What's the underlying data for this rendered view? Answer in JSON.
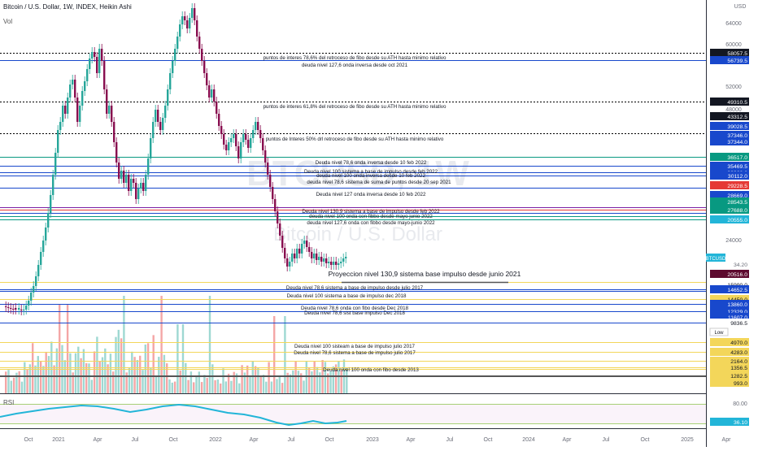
{
  "header": {
    "symbol_line": "Bitcoin / U.S. Dollar, 1W, INDEX, Heikin Ashi",
    "vol_label": "Vol",
    "rsi_label": "RSI",
    "currency": "USD",
    "low_label": "Low"
  },
  "watermark": {
    "symbol": "BTCUSD, 1W",
    "name": "Bitcoin / U.S. Dollar"
  },
  "colors": {
    "up": "#26a69a",
    "down": "#880e4f",
    "vol_up": "#9ed8d2",
    "vol_down": "#f4a6a6",
    "rsi": "#22b5d8",
    "level_blue": "#1848cc",
    "level_green": "#089981",
    "level_purple": "#7b1fa2",
    "level_yellow": "#f3d65a",
    "level_red": "#e53935",
    "price_tag": "#2962ff"
  },
  "price_axis_ticks": [
    "64000",
    "60000",
    "52000",
    "48000",
    "24000"
  ],
  "price_axis_labels": [
    {
      "text": "58057.5",
      "style": "black"
    },
    {
      "text": "56739.5",
      "style": "blue"
    },
    {
      "text": "49310.5",
      "style": "black"
    },
    {
      "text": "43312.5",
      "style": "black"
    },
    {
      "text": "39028.5",
      "style": "blue"
    },
    {
      "text": "37346.0",
      "style": "blue"
    },
    {
      "text": "37344.0",
      "style": "blue"
    },
    {
      "text": "36517.0",
      "style": "green"
    },
    {
      "text": "35469.5",
      "style": "blue"
    },
    {
      "text": "33368.0",
      "style": "blue"
    },
    {
      "text": "30112.0",
      "style": "blue"
    },
    {
      "text": "29228.5",
      "style": "red"
    },
    {
      "text": "28669.0",
      "style": "blue"
    },
    {
      "text": "28543.5",
      "style": "green"
    },
    {
      "text": "27688.0",
      "style": "green"
    },
    {
      "text": "20555.0",
      "style": "cyan"
    },
    {
      "text": "20516.0",
      "style": "dark"
    },
    {
      "text": "15990.0",
      "style": "plain"
    },
    {
      "text": "14652.5",
      "style": "blue"
    },
    {
      "text": "14450.0",
      "style": "yellow"
    },
    {
      "text": "13860.0",
      "style": "blue"
    },
    {
      "text": "12329.0",
      "style": "blue"
    },
    {
      "text": "11607.0",
      "style": "blue"
    },
    {
      "text": "9836.5",
      "style": "plain"
    },
    {
      "text": "4970.0",
      "style": "yellow"
    },
    {
      "text": "4283.0",
      "style": "yellow"
    },
    {
      "text": "2164.0",
      "style": "yellow"
    },
    {
      "text": "1356.5",
      "style": "yellow"
    },
    {
      "text": "1282.5",
      "style": "yellow"
    },
    {
      "text": "993.0",
      "style": "yellow"
    }
  ],
  "ticker_tag": {
    "symbol": "BTCUSD",
    "price": "20555.0",
    "volume": "34.20"
  },
  "rsi_axis": {
    "top": "80.00",
    "value": "36.10"
  },
  "time_axis": [
    "Oct",
    "2021",
    "Apr",
    "Jul",
    "Oct",
    "2022",
    "Apr",
    "Jul",
    "Oct",
    "2023",
    "Apr",
    "Jul",
    "Oct",
    "2024",
    "Apr",
    "Jul",
    "Oct",
    "2025",
    "Apr"
  ],
  "annotations": [
    "puntos de interes 78,6% del retroceso de fibo desde su ATH hasta minimo relativo",
    "deuda nivel 127,6 onda inversa desde oct 2021",
    "puntos de interes 61,8% del retroceso de fibo desde su ATH hasta minimo relativo",
    "puntos de Interes 50% drl retroceso de fibo desde su ATH hasta minimo relativo",
    "Deuda nivel 78,6 onda inversa desde 10 feb 2022",
    "Deuda nivel 100 sistema a base de impulso desde feb 2022",
    "deuda nivel 100 onda inversa desde 10 feb 2022",
    "deuda nivel 78,6 sistema de  suma de puntos desde 20 sep 2021",
    "Deuda nivel 127 onda inversa desde 10 feb 2022",
    "Deuda nivel 130,9 sistema a base de impulso desde feb 2022",
    "deuda nivel 100 onda con fibbo desde mayo junio 2022",
    "deuda nivel 127,6 onda con fibbo desde mayo-junio 2022",
    "Proyeccion nivel 130,9 sistema base impulso desde junio 2021",
    "Deuda nivel 78,6  sistema a base de impulso desde julio 2017",
    "Deuda nivel 100 sistema a base de impulso dec 2018",
    "Deuda nivel 78,6 onda con fibo desde Dec 2018",
    "Deuda nivel 78,6 sist base impulso Dec 2018",
    "Deuda nivel 100 sisteam a base de impulso julio 2017",
    "Deuda nivel 78,6 sistema a base de impulso julio 2017",
    "Deuda nivel 100 onda con fibo desde 2013"
  ]
}
